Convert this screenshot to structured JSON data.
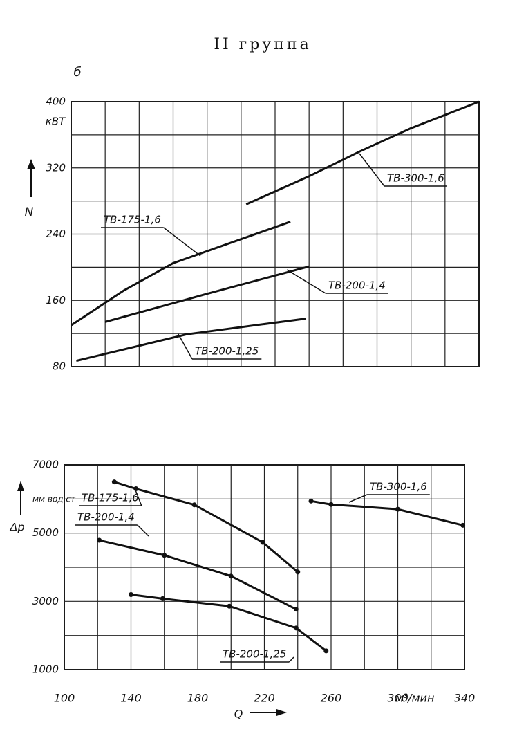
{
  "chart_data": [
    {
      "type": "line",
      "title": "II группа",
      "y_label": "N",
      "y_top_label": "б",
      "y_unit": "кВТ",
      "xlim": [
        100,
        340
      ],
      "ylim": [
        80,
        400
      ],
      "yticks": [
        80,
        160,
        240,
        320,
        400
      ],
      "grid": true,
      "series": [
        {
          "name": "ТВ-300-1,6",
          "color": "#111",
          "x": [
            203,
            240,
            270,
            300,
            340
          ],
          "values": [
            276,
            310,
            340,
            368,
            400
          ]
        },
        {
          "name": "ТВ-175-1,6",
          "color": "#111",
          "x": [
            100,
            131,
            160,
            229
          ],
          "values": [
            130,
            172,
            205,
            255
          ]
        },
        {
          "name": "ТВ-200-1,4",
          "color": "#111",
          "x": [
            120,
            180,
            240
          ],
          "values": [
            134,
            168,
            201
          ]
        },
        {
          "name": "ТВ-200-1,25",
          "color": "#111",
          "x": [
            103,
            168,
            238
          ],
          "values": [
            87,
            119,
            138
          ]
        }
      ]
    },
    {
      "type": "line",
      "y_label": "Δp",
      "y_unit": "мм вод.ст",
      "x_label": "Q",
      "x_unit": "м³/мин",
      "xlim": [
        100,
        340
      ],
      "ylim": [
        1000,
        7000
      ],
      "xticks": [
        100,
        140,
        180,
        220,
        260,
        300,
        340
      ],
      "yticks": [
        1000,
        3000,
        5000,
        7000
      ],
      "grid": true,
      "series": [
        {
          "name": "ТВ-175-1,6",
          "color": "#111",
          "x": [
            130,
            143,
            178,
            219,
            240
          ],
          "values": [
            6500,
            6300,
            5830,
            4730,
            3860
          ]
        },
        {
          "name": "ТВ-200-1,4",
          "color": "#111",
          "x": [
            121,
            160,
            200,
            239
          ],
          "values": [
            4790,
            4350,
            3740,
            2770
          ]
        },
        {
          "name": "ТВ-200-1,25",
          "color": "#111",
          "x": [
            140,
            159,
            199,
            239,
            257
          ],
          "values": [
            3200,
            3080,
            2860,
            2220,
            1550
          ]
        },
        {
          "name": "ТВ-300-1,6",
          "color": "#111",
          "x": [
            248,
            260,
            300,
            339
          ],
          "values": [
            5940,
            5840,
            5700,
            5230
          ]
        }
      ]
    }
  ]
}
